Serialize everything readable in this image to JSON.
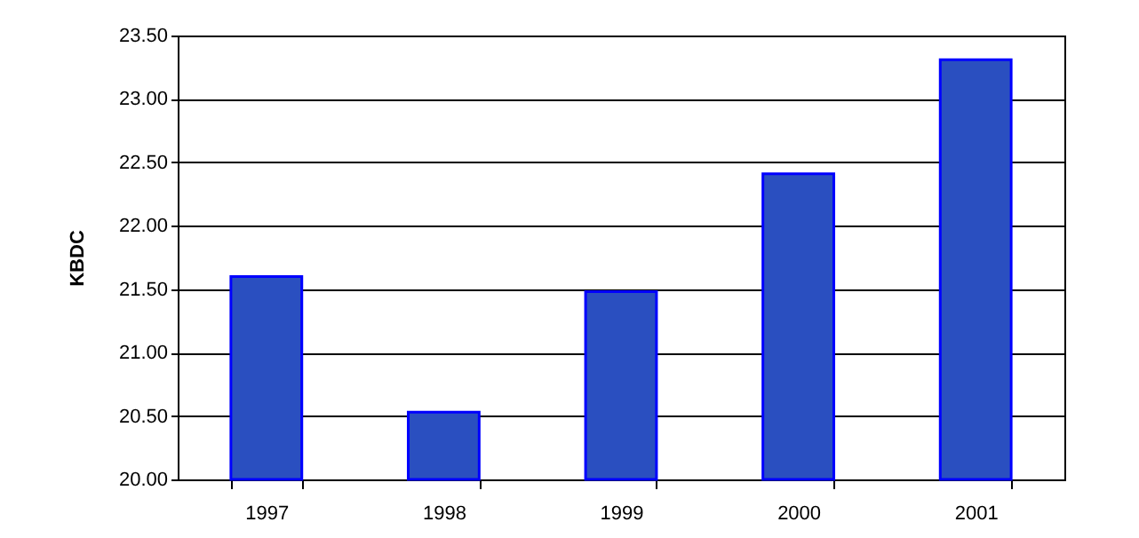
{
  "chart_data": {
    "type": "bar",
    "ylabel": "KBDC",
    "categories": [
      "1997",
      "1998",
      "1999",
      "2000",
      "2001"
    ],
    "values": [
      21.6,
      20.53,
      21.48,
      22.41,
      23.31
    ],
    "color": "#2a4fc0",
    "ylim": [
      20,
      23.5
    ],
    "yticks": [
      {
        "value": 20,
        "label": "20.00"
      },
      {
        "value": 20.5,
        "label": "20.50"
      },
      {
        "value": 21,
        "label": "21.00"
      },
      {
        "value": 21.5,
        "label": "21.50"
      },
      {
        "value": 22,
        "label": "22.00"
      },
      {
        "value": 22.5,
        "label": "22.50"
      },
      {
        "value": 23,
        "label": "23.00"
      },
      {
        "value": 23.5,
        "label": "23.50"
      }
    ],
    "grid": "y"
  }
}
